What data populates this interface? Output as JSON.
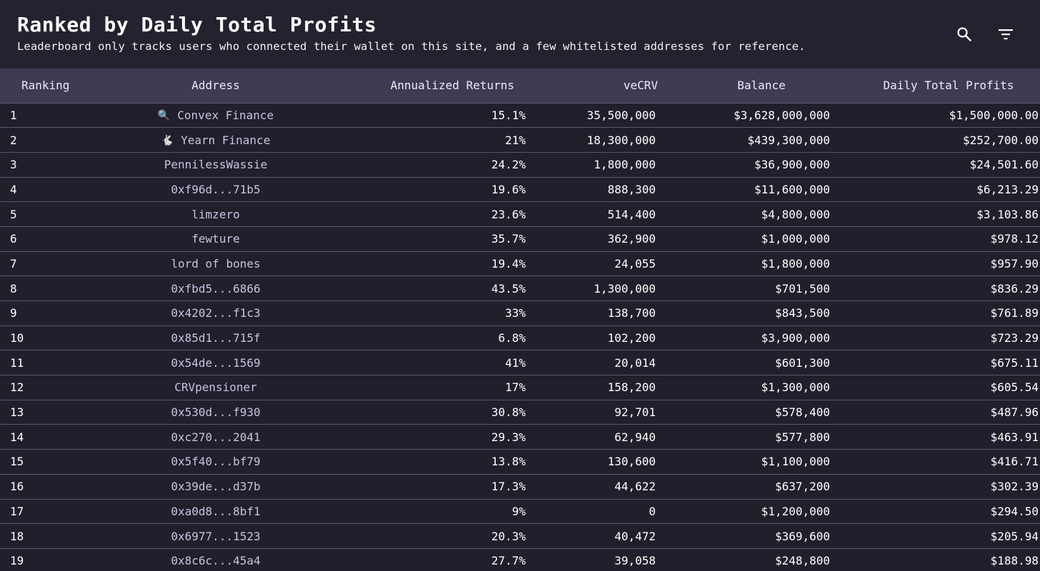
{
  "header": {
    "title": "Ranked by Daily Total Profits",
    "subtitle": "Leaderboard only tracks users who connected their wallet on this site, and a few whitelisted addresses for reference.",
    "icons": {
      "search": "search-icon",
      "filter": "filter-icon"
    }
  },
  "table": {
    "columns": [
      "Ranking",
      "Address",
      "Annualized Returns",
      "veCRV",
      "Balance",
      "Daily Total Profits"
    ],
    "rows": [
      {
        "rank": "1",
        "emoji": "🔍",
        "address": "Convex Finance",
        "returns": "15.1%",
        "vecrv": "35,500,000",
        "balance": "$3,628,000,000",
        "profits": "$1,500,000.00"
      },
      {
        "rank": "2",
        "emoji": "🐇",
        "address": "Yearn Finance",
        "returns": "21%",
        "vecrv": "18,300,000",
        "balance": "$439,300,000",
        "profits": "$252,700.00"
      },
      {
        "rank": "3",
        "emoji": "",
        "address": "PennilessWassie",
        "returns": "24.2%",
        "vecrv": "1,800,000",
        "balance": "$36,900,000",
        "profits": "$24,501.60"
      },
      {
        "rank": "4",
        "emoji": "",
        "address": "0xf96d...71b5",
        "returns": "19.6%",
        "vecrv": "888,300",
        "balance": "$11,600,000",
        "profits": "$6,213.29"
      },
      {
        "rank": "5",
        "emoji": "",
        "address": "limzero",
        "returns": "23.6%",
        "vecrv": "514,400",
        "balance": "$4,800,000",
        "profits": "$3,103.86"
      },
      {
        "rank": "6",
        "emoji": "",
        "address": "fewture",
        "returns": "35.7%",
        "vecrv": "362,900",
        "balance": "$1,000,000",
        "profits": "$978.12"
      },
      {
        "rank": "7",
        "emoji": "",
        "address": "lord of bones",
        "returns": "19.4%",
        "vecrv": "24,055",
        "balance": "$1,800,000",
        "profits": "$957.90"
      },
      {
        "rank": "8",
        "emoji": "",
        "address": "0xfbd5...6866",
        "returns": "43.5%",
        "vecrv": "1,300,000",
        "balance": "$701,500",
        "profits": "$836.29"
      },
      {
        "rank": "9",
        "emoji": "",
        "address": "0x4202...f1c3",
        "returns": "33%",
        "vecrv": "138,700",
        "balance": "$843,500",
        "profits": "$761.89"
      },
      {
        "rank": "10",
        "emoji": "",
        "address": "0x85d1...715f",
        "returns": "6.8%",
        "vecrv": "102,200",
        "balance": "$3,900,000",
        "profits": "$723.29"
      },
      {
        "rank": "11",
        "emoji": "",
        "address": "0x54de...1569",
        "returns": "41%",
        "vecrv": "20,014",
        "balance": "$601,300",
        "profits": "$675.11"
      },
      {
        "rank": "12",
        "emoji": "",
        "address": "CRVpensioner",
        "returns": "17%",
        "vecrv": "158,200",
        "balance": "$1,300,000",
        "profits": "$605.54"
      },
      {
        "rank": "13",
        "emoji": "",
        "address": "0x530d...f930",
        "returns": "30.8%",
        "vecrv": "92,701",
        "balance": "$578,400",
        "profits": "$487.96"
      },
      {
        "rank": "14",
        "emoji": "",
        "address": "0xc270...2041",
        "returns": "29.3%",
        "vecrv": "62,940",
        "balance": "$577,800",
        "profits": "$463.91"
      },
      {
        "rank": "15",
        "emoji": "",
        "address": "0x5f40...bf79",
        "returns": "13.8%",
        "vecrv": "130,600",
        "balance": "$1,100,000",
        "profits": "$416.71"
      },
      {
        "rank": "16",
        "emoji": "",
        "address": "0x39de...d37b",
        "returns": "17.3%",
        "vecrv": "44,622",
        "balance": "$637,200",
        "profits": "$302.39"
      },
      {
        "rank": "17",
        "emoji": "",
        "address": "0xa0d8...8bf1",
        "returns": "9%",
        "vecrv": "0",
        "balance": "$1,200,000",
        "profits": "$294.50"
      },
      {
        "rank": "18",
        "emoji": "",
        "address": "0x6977...1523",
        "returns": "20.3%",
        "vecrv": "40,472",
        "balance": "$369,600",
        "profits": "$205.94"
      },
      {
        "rank": "19",
        "emoji": "",
        "address": "0x8c6c...45a4",
        "returns": "27.7%",
        "vecrv": "39,058",
        "balance": "$248,800",
        "profits": "$188.98"
      }
    ]
  },
  "colors": {
    "background": "#221f2c",
    "header_bar": "#403a55",
    "row_divider": "#5a5670",
    "address_text": "#c9c3e0"
  }
}
